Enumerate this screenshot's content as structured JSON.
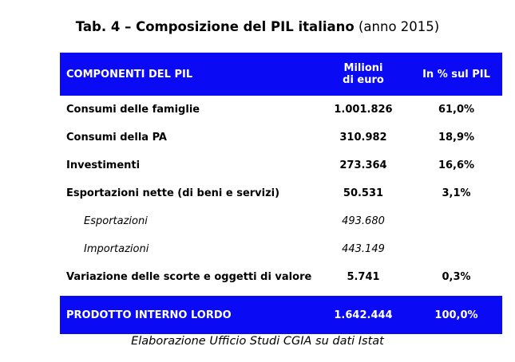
{
  "title": {
    "bold": "Tab. 4 – Composizione del PIL italiano",
    "light": "(anno 2015)"
  },
  "header": {
    "col1": "COMPONENTI DEL PIL",
    "col2_line1": "Milioni",
    "col2_line2": "di euro",
    "col3": "In % sul PIL"
  },
  "rows": [
    {
      "label": "Consumi delle famiglie",
      "value": "1.001.826",
      "pct": "61,0%"
    },
    {
      "label": "Consumi della PA",
      "value": "310.982",
      "pct": "18,9%"
    },
    {
      "label": "Investimenti",
      "value": "273.364",
      "pct": "16,6%"
    },
    {
      "label": "Esportazioni nette (di beni e servizi)",
      "value": "50.531",
      "pct": "3,1%"
    },
    {
      "label": "Esportazioni",
      "value": "493.680",
      "pct": ""
    },
    {
      "label": "Importazioni",
      "value": "443.149",
      "pct": ""
    },
    {
      "label": "Variazione delle scorte e oggetti di valore",
      "value": "5.741",
      "pct": "0,3%"
    }
  ],
  "total": {
    "label": "PRODOTTO INTERNO LORDO",
    "value": "1.642.444",
    "pct": "100,0%"
  },
  "source": "Elaborazione Ufficio Studi CGIA su dati Istat",
  "colors": {
    "header_bg": "#0a0af5",
    "header_text": "#ffffff"
  }
}
